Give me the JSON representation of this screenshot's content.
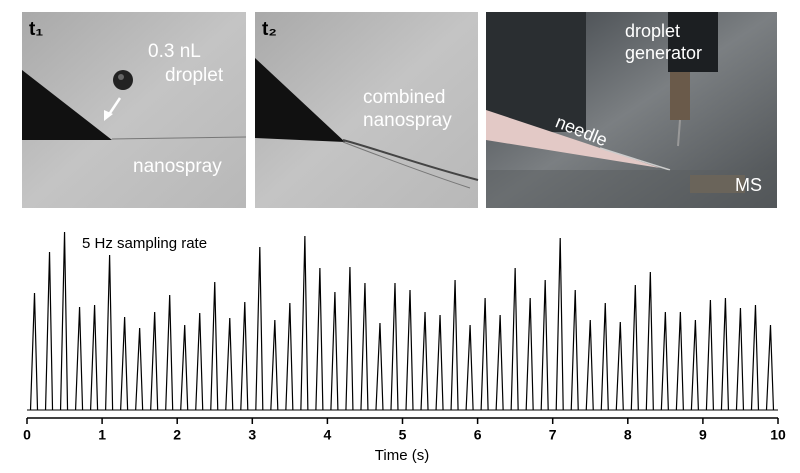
{
  "panels": [
    {
      "time_label": "t₁",
      "labels": [
        [
          "0.3 nL",
          "droplet"
        ],
        [
          "nanospray"
        ]
      ]
    },
    {
      "time_label": "t₂",
      "labels": [
        [
          "combined",
          "nanospray"
        ]
      ]
    },
    {
      "labels": [
        [
          "droplet",
          "generator"
        ],
        [
          "needle"
        ],
        [
          "MS"
        ]
      ]
    }
  ],
  "chart_data": {
    "type": "line",
    "annotation": "5 Hz sampling rate",
    "xlabel": "Time (s)",
    "x": [
      0.1,
      0.3,
      0.5,
      0.7,
      0.9,
      1.1,
      1.3,
      1.5,
      1.7,
      1.9,
      2.1,
      2.3,
      2.5,
      2.7,
      2.9,
      3.1,
      3.3,
      3.5,
      3.7,
      3.9,
      4.1,
      4.3,
      4.5,
      4.7,
      4.9,
      5.1,
      5.3,
      5.5,
      5.7,
      5.9,
      6.1,
      6.3,
      6.5,
      6.7,
      6.9,
      7.1,
      7.3,
      7.5,
      7.7,
      7.9,
      8.1,
      8.3,
      8.5,
      8.7,
      8.9,
      9.1,
      9.3,
      9.5,
      9.7,
      9.9
    ],
    "values": [
      117,
      158,
      178,
      103,
      105,
      155,
      93,
      82,
      98,
      115,
      85,
      97,
      128,
      92,
      108,
      163,
      90,
      107,
      174,
      142,
      118,
      143,
      127,
      87,
      127,
      120,
      98,
      95,
      130,
      85,
      112,
      95,
      142,
      112,
      130,
      172,
      120,
      90,
      107,
      88,
      125,
      138,
      98,
      98,
      90,
      110,
      112,
      102,
      105,
      85
    ],
    "color": "#000000",
    "xlim": [
      0,
      10
    ],
    "xticks": [
      0,
      1,
      2,
      3,
      4,
      5,
      6,
      7,
      8,
      9,
      10
    ]
  }
}
